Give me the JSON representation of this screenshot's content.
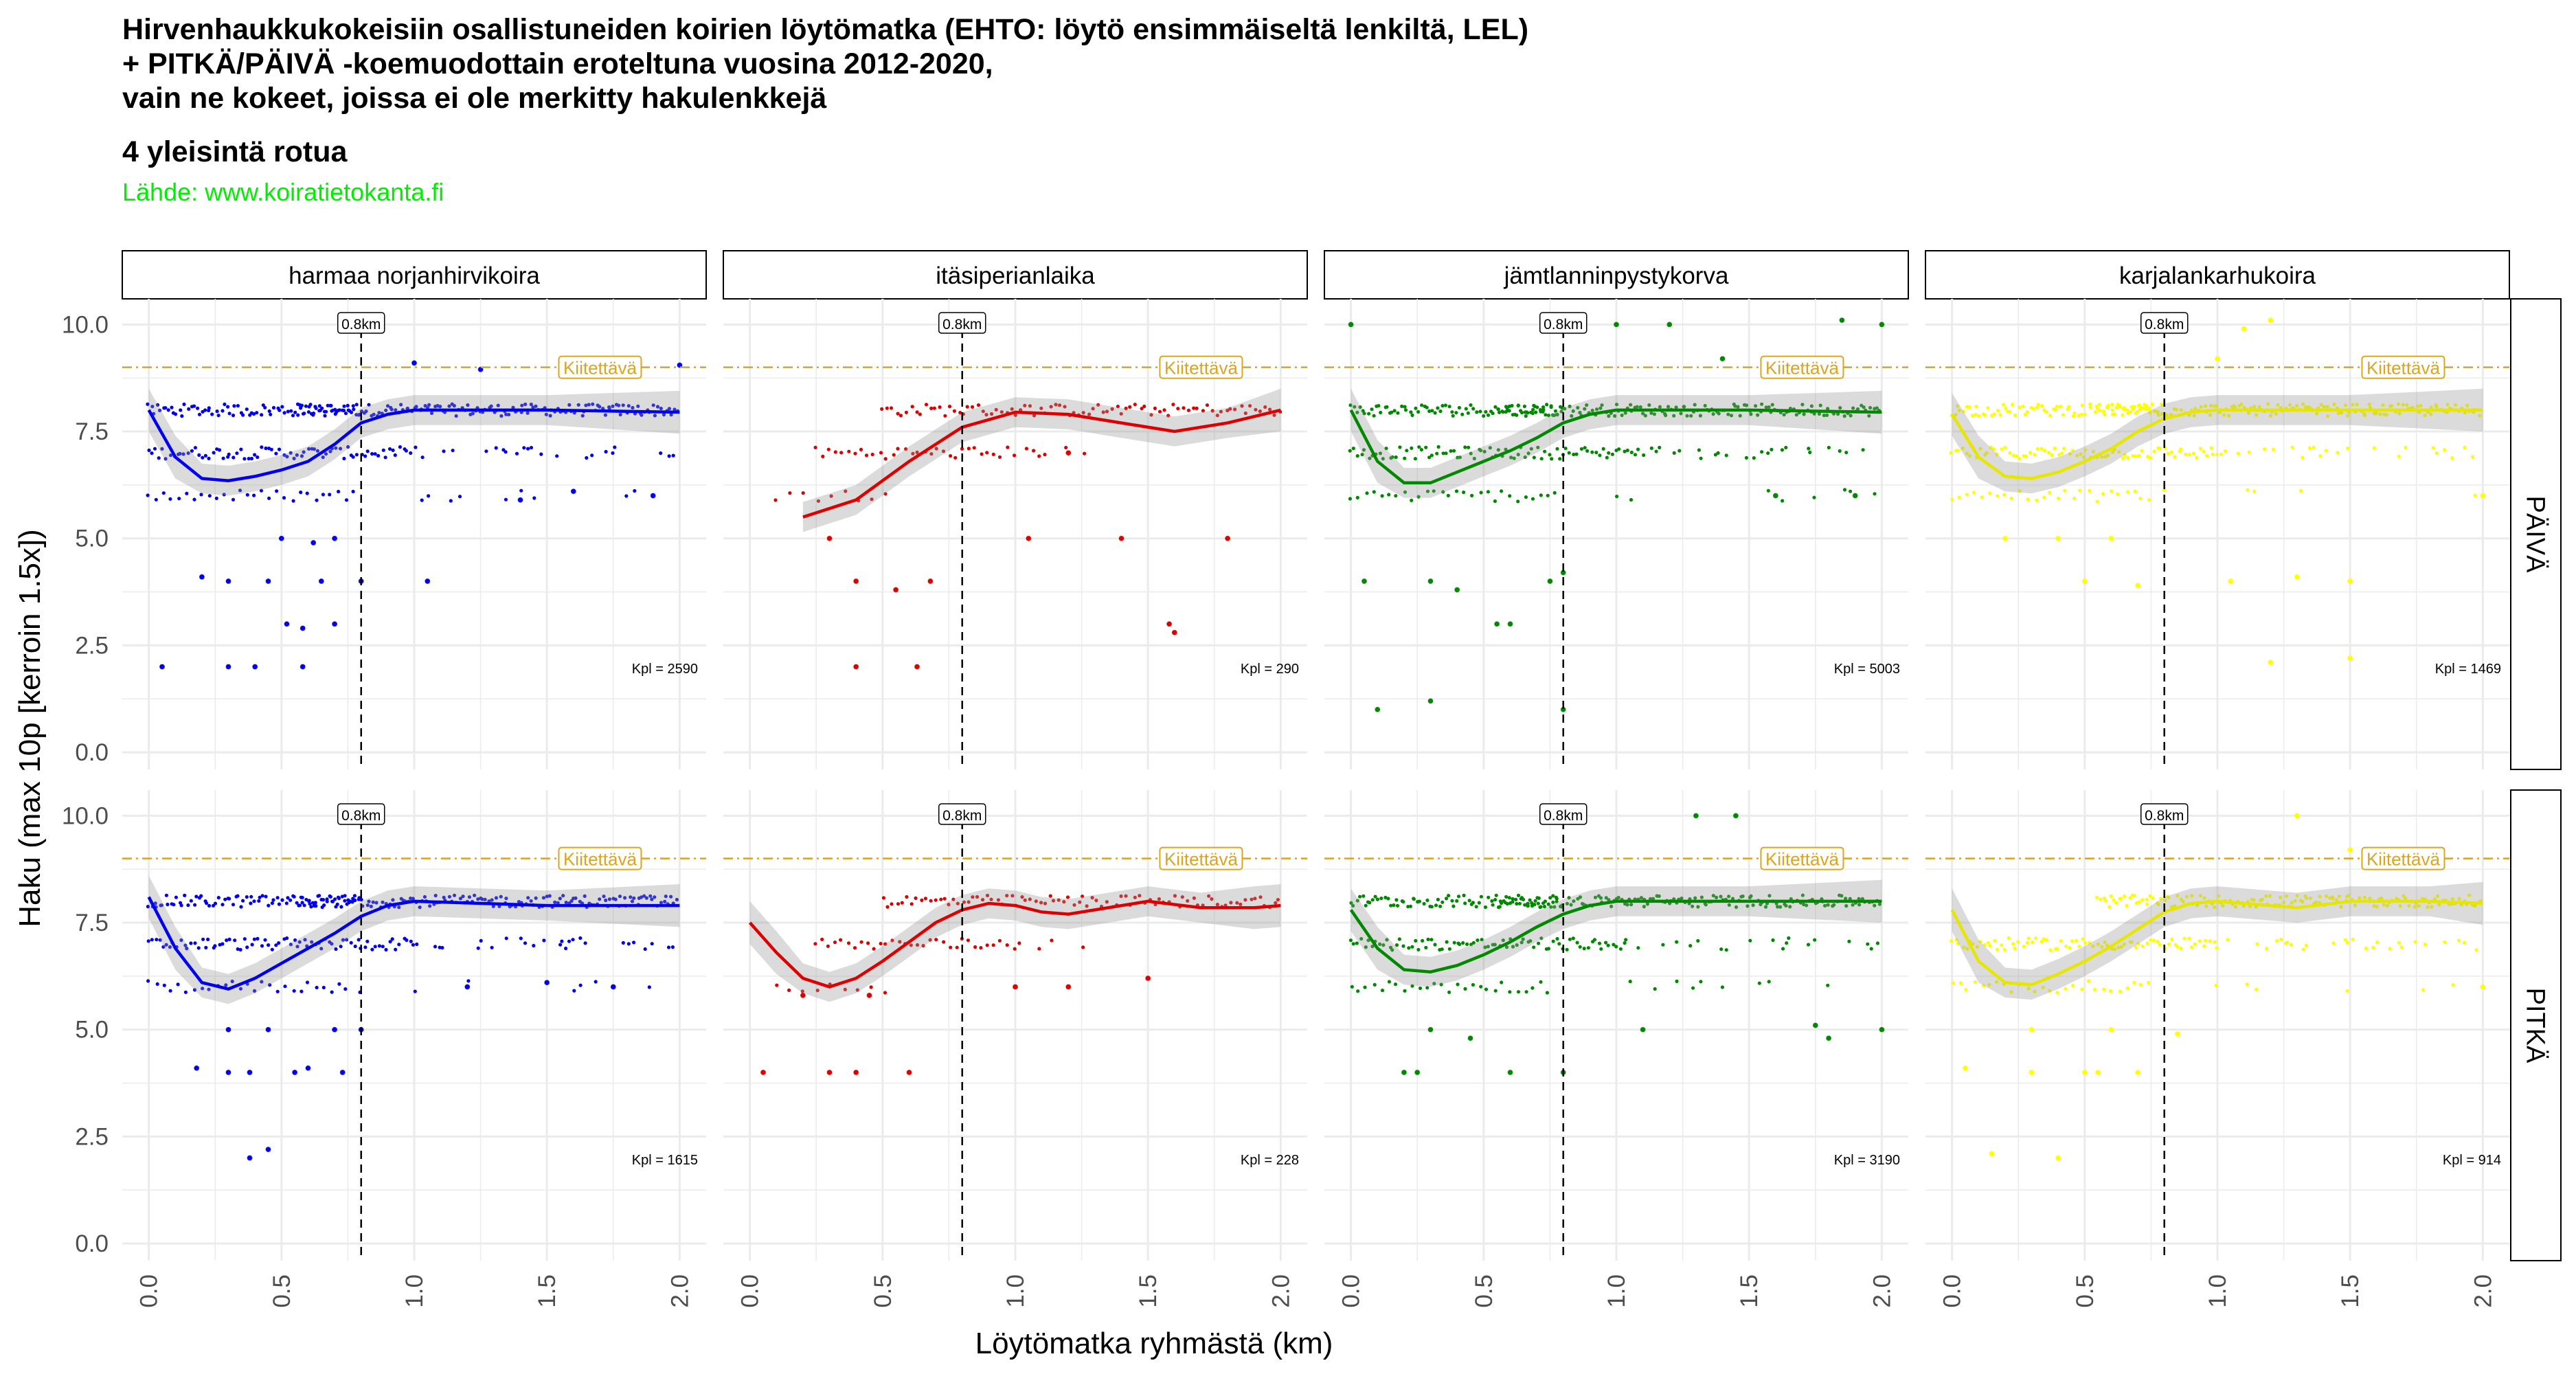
{
  "title": {
    "line1": "Hirvenhaukkukokeisiin osallistuneiden koirien löytömatka (EHTO: löytö ensimmäiseltä lenkiltä, LEL)",
    "line2": "+ PITKÄ/PÄIVÄ -koemuodottain eroteltuna vuosina 2012-2020,",
    "line3": "vain ne kokeet, joissa ei ole merkitty hakulenkkejä",
    "subtitle": "4 yleisintä rotua",
    "caption": "Lähde: www.koiratietokanta.fi"
  },
  "chart_data": {
    "type": "scatter",
    "xlabel": "Löytömatka ryhmästä (km)",
    "ylabel": "Haku (max 10p [kerroin 1.5x])",
    "xlim": [
      -0.1,
      2.1
    ],
    "ylim": [
      -0.4,
      10.6
    ],
    "x_ticks": [
      "0.0",
      "0.5",
      "1.0",
      "1.5",
      "2.0"
    ],
    "x_tick_values": [
      0,
      0.5,
      1,
      1.5,
      2
    ],
    "y_ticks": [
      "0.0",
      "2.5",
      "5.0",
      "7.5",
      "10.0"
    ],
    "y_tick_values": [
      0,
      2.5,
      5,
      7.5,
      10
    ],
    "grid": true,
    "columns": [
      "harmaa norjanhirvikoira",
      "itäsiperianlaika",
      "jämtlanninpystykorva",
      "karjalankarhukoira"
    ],
    "rows": [
      "PÄIVÄ",
      "PITKÄ"
    ],
    "colors": [
      "#0000ee",
      "#dd0000",
      "#008800",
      "#ffff00"
    ],
    "vline": {
      "x": 0.8,
      "label": "0.8km"
    },
    "hline": {
      "y": 9,
      "label": "Kiitettävä",
      "color": "#daa520"
    },
    "panels": [
      {
        "row": 0,
        "col": 0,
        "n_label": "Kpl = 2590",
        "smooth": [
          [
            0,
            8.0
          ],
          [
            0.1,
            6.9
          ],
          [
            0.2,
            6.4
          ],
          [
            0.3,
            6.35
          ],
          [
            0.4,
            6.45
          ],
          [
            0.5,
            6.6
          ],
          [
            0.6,
            6.8
          ],
          [
            0.7,
            7.2
          ],
          [
            0.8,
            7.7
          ],
          [
            0.9,
            7.9
          ],
          [
            1.0,
            8.0
          ],
          [
            1.5,
            8.0
          ],
          [
            2.0,
            7.95
          ]
        ],
        "bands": [
          [
            0,
            8.0
          ],
          [
            1,
            8.0
          ],
          [
            2,
            7.0
          ],
          [
            3,
            6.0
          ]
        ],
        "sparse": [
          [
            0.05,
            2.0
          ],
          [
            0.3,
            2.0
          ],
          [
            0.4,
            2.0
          ],
          [
            0.58,
            2.0
          ],
          [
            0.2,
            4.1
          ],
          [
            0.3,
            4.0
          ],
          [
            0.45,
            4.0
          ],
          [
            0.65,
            4.0
          ],
          [
            0.8,
            4.0
          ],
          [
            0.52,
            3.0
          ],
          [
            0.58,
            2.9
          ],
          [
            0.7,
            3.0
          ],
          [
            0.5,
            5.0
          ],
          [
            0.62,
            4.9
          ],
          [
            0.7,
            5.0
          ],
          [
            1.05,
            4.0
          ],
          [
            1.0,
            9.1
          ],
          [
            1.25,
            8.95
          ],
          [
            2.0,
            9.05
          ],
          [
            1.6,
            6.1
          ],
          [
            1.9,
            6.0
          ],
          [
            1.4,
            5.9
          ]
        ]
      },
      {
        "row": 0,
        "col": 1,
        "n_label": "Kpl = 290",
        "smooth": [
          [
            0.2,
            5.5
          ],
          [
            0.4,
            5.9
          ],
          [
            0.6,
            6.8
          ],
          [
            0.8,
            7.6
          ],
          [
            1.0,
            7.95
          ],
          [
            1.2,
            7.9
          ],
          [
            1.4,
            7.7
          ],
          [
            1.6,
            7.5
          ],
          [
            1.8,
            7.7
          ],
          [
            2.0,
            8.0
          ]
        ],
        "bands": [
          [
            0,
            8.0
          ],
          [
            2,
            7.0
          ],
          [
            3,
            6.0
          ]
        ],
        "sparse": [
          [
            0.4,
            2.0
          ],
          [
            0.63,
            2.0
          ],
          [
            0.4,
            4.0
          ],
          [
            0.55,
            3.8
          ],
          [
            0.68,
            4.0
          ],
          [
            1.58,
            3.0
          ],
          [
            1.6,
            2.8
          ],
          [
            1.2,
            7.0
          ],
          [
            1.4,
            5.0
          ],
          [
            1.8,
            5.0
          ],
          [
            0.3,
            5.0
          ],
          [
            1.05,
            5.0
          ]
        ]
      },
      {
        "row": 0,
        "col": 2,
        "n_label": "Kpl = 5003",
        "smooth": [
          [
            0,
            8.0
          ],
          [
            0.1,
            6.8
          ],
          [
            0.2,
            6.3
          ],
          [
            0.3,
            6.3
          ],
          [
            0.4,
            6.55
          ],
          [
            0.5,
            6.8
          ],
          [
            0.6,
            7.05
          ],
          [
            0.7,
            7.35
          ],
          [
            0.8,
            7.7
          ],
          [
            0.9,
            7.9
          ],
          [
            1.0,
            8.0
          ],
          [
            1.5,
            8.0
          ],
          [
            2.0,
            7.95
          ]
        ],
        "bands": [
          [
            0,
            8.0
          ],
          [
            1,
            8.0
          ],
          [
            2,
            7.0
          ],
          [
            3,
            6.0
          ]
        ],
        "sparse": [
          [
            0.1,
            1.0
          ],
          [
            0.3,
            1.2
          ],
          [
            0.8,
            1.0
          ],
          [
            0.55,
            3.0
          ],
          [
            0.6,
            3.0
          ],
          [
            0.05,
            4.0
          ],
          [
            0.3,
            4.0
          ],
          [
            0.4,
            3.8
          ],
          [
            0.75,
            4.0
          ],
          [
            0.8,
            4.2
          ],
          [
            0.0,
            10.0
          ],
          [
            1.0,
            10.0
          ],
          [
            1.2,
            10.0
          ],
          [
            1.85,
            10.1
          ],
          [
            2.0,
            10.0
          ],
          [
            1.4,
            9.2
          ],
          [
            1.6,
            6.0
          ],
          [
            1.9,
            6.0
          ]
        ]
      },
      {
        "row": 0,
        "col": 3,
        "n_label": "Kpl = 1469",
        "smooth": [
          [
            0,
            7.9
          ],
          [
            0.1,
            6.9
          ],
          [
            0.2,
            6.45
          ],
          [
            0.3,
            6.4
          ],
          [
            0.4,
            6.55
          ],
          [
            0.5,
            6.8
          ],
          [
            0.6,
            7.1
          ],
          [
            0.7,
            7.5
          ],
          [
            0.8,
            7.8
          ],
          [
            0.9,
            7.95
          ],
          [
            1.0,
            8.0
          ],
          [
            1.5,
            8.0
          ],
          [
            2.0,
            8.0
          ]
        ],
        "bands": [
          [
            0,
            8.0
          ],
          [
            1,
            8.0
          ],
          [
            2,
            7.0
          ],
          [
            3,
            6.0
          ]
        ],
        "sparse": [
          [
            0.5,
            4.0
          ],
          [
            0.7,
            3.9
          ],
          [
            1.05,
            4.0
          ],
          [
            1.3,
            4.1
          ],
          [
            1.5,
            4.0
          ],
          [
            0.2,
            5.0
          ],
          [
            0.4,
            5.0
          ],
          [
            0.6,
            5.0
          ],
          [
            1.2,
            2.1
          ],
          [
            1.5,
            2.2
          ],
          [
            1.0,
            9.2
          ],
          [
            1.2,
            10.1
          ],
          [
            1.1,
            9.9
          ],
          [
            2.0,
            6.0
          ]
        ]
      },
      {
        "row": 1,
        "col": 0,
        "n_label": "Kpl = 1615",
        "smooth": [
          [
            0,
            8.1
          ],
          [
            0.1,
            6.9
          ],
          [
            0.2,
            6.1
          ],
          [
            0.3,
            5.95
          ],
          [
            0.4,
            6.2
          ],
          [
            0.5,
            6.55
          ],
          [
            0.6,
            6.9
          ],
          [
            0.7,
            7.25
          ],
          [
            0.8,
            7.65
          ],
          [
            0.9,
            7.9
          ],
          [
            1.0,
            8.0
          ],
          [
            1.5,
            7.9
          ],
          [
            2.0,
            7.9
          ]
        ],
        "bands": [
          [
            0,
            8.0
          ],
          [
            1,
            8.0
          ],
          [
            2,
            7.0
          ],
          [
            3,
            6.0
          ]
        ],
        "sparse": [
          [
            0.38,
            2.0
          ],
          [
            0.45,
            2.2
          ],
          [
            0.18,
            4.1
          ],
          [
            0.3,
            4.0
          ],
          [
            0.38,
            4.0
          ],
          [
            0.55,
            4.0
          ],
          [
            0.6,
            4.1
          ],
          [
            0.73,
            4.0
          ],
          [
            0.8,
            5.0
          ],
          [
            0.3,
            5.0
          ],
          [
            0.45,
            5.0
          ],
          [
            0.7,
            5.0
          ],
          [
            1.2,
            6.0
          ],
          [
            1.5,
            6.1
          ],
          [
            1.75,
            6.0
          ]
        ]
      },
      {
        "row": 1,
        "col": 1,
        "n_label": "Kpl = 228",
        "smooth": [
          [
            0,
            7.5
          ],
          [
            0.1,
            6.8
          ],
          [
            0.2,
            6.2
          ],
          [
            0.3,
            6.0
          ],
          [
            0.4,
            6.2
          ],
          [
            0.5,
            6.6
          ],
          [
            0.6,
            7.05
          ],
          [
            0.7,
            7.5
          ],
          [
            0.8,
            7.8
          ],
          [
            0.9,
            7.95
          ],
          [
            1.0,
            7.9
          ],
          [
            1.1,
            7.75
          ],
          [
            1.2,
            7.7
          ],
          [
            1.3,
            7.8
          ],
          [
            1.5,
            8.0
          ],
          [
            1.7,
            7.85
          ],
          [
            1.9,
            7.85
          ],
          [
            2.0,
            7.9
          ]
        ],
        "bands": [
          [
            0,
            8.0
          ],
          [
            2,
            7.0
          ],
          [
            3,
            6.0
          ]
        ],
        "sparse": [
          [
            0.05,
            4.0
          ],
          [
            0.3,
            4.0
          ],
          [
            0.4,
            4.0
          ],
          [
            0.6,
            4.0
          ],
          [
            0.2,
            5.8
          ],
          [
            0.45,
            5.8
          ],
          [
            1.0,
            6.0
          ],
          [
            1.2,
            6.0
          ],
          [
            1.5,
            6.2
          ]
        ]
      },
      {
        "row": 1,
        "col": 2,
        "n_label": "Kpl = 3190",
        "smooth": [
          [
            0,
            7.8
          ],
          [
            0.1,
            6.9
          ],
          [
            0.2,
            6.4
          ],
          [
            0.3,
            6.35
          ],
          [
            0.4,
            6.5
          ],
          [
            0.5,
            6.75
          ],
          [
            0.6,
            7.05
          ],
          [
            0.7,
            7.4
          ],
          [
            0.8,
            7.7
          ],
          [
            0.9,
            7.9
          ],
          [
            1.0,
            8.0
          ],
          [
            1.5,
            8.0
          ],
          [
            2.0,
            8.0
          ]
        ],
        "bands": [
          [
            0,
            8.0
          ],
          [
            1,
            8.0
          ],
          [
            2,
            7.0
          ],
          [
            3,
            6.0
          ]
        ],
        "sparse": [
          [
            0.2,
            4.0
          ],
          [
            0.25,
            4.0
          ],
          [
            0.6,
            4.0
          ],
          [
            0.8,
            4.0
          ],
          [
            0.3,
            5.0
          ],
          [
            0.45,
            4.8
          ],
          [
            1.1,
            5.0
          ],
          [
            1.75,
            5.1
          ],
          [
            1.8,
            4.8
          ],
          [
            2.0,
            5.0
          ],
          [
            1.3,
            10.0
          ],
          [
            1.45,
            10.0
          ]
        ]
      },
      {
        "row": 1,
        "col": 3,
        "n_label": "Kpl = 914",
        "smooth": [
          [
            0,
            7.8
          ],
          [
            0.1,
            6.6
          ],
          [
            0.2,
            6.1
          ],
          [
            0.3,
            6.05
          ],
          [
            0.4,
            6.3
          ],
          [
            0.5,
            6.6
          ],
          [
            0.6,
            6.95
          ],
          [
            0.7,
            7.35
          ],
          [
            0.8,
            7.75
          ],
          [
            0.9,
            7.95
          ],
          [
            1.0,
            8.0
          ],
          [
            1.3,
            7.85
          ],
          [
            1.5,
            8.0
          ],
          [
            1.8,
            8.0
          ],
          [
            2.0,
            7.95
          ]
        ],
        "bands": [
          [
            0,
            8.0
          ],
          [
            2,
            7.0
          ],
          [
            3,
            6.0
          ]
        ],
        "sparse": [
          [
            0.15,
            2.1
          ],
          [
            0.4,
            2.0
          ],
          [
            0.05,
            4.1
          ],
          [
            0.3,
            4.0
          ],
          [
            0.5,
            4.0
          ],
          [
            0.55,
            4.0
          ],
          [
            0.7,
            4.0
          ],
          [
            0.3,
            5.0
          ],
          [
            0.6,
            5.0
          ],
          [
            0.85,
            4.9
          ],
          [
            1.3,
            10.0
          ],
          [
            1.5,
            9.2
          ],
          [
            2.0,
            6.0
          ]
        ]
      }
    ]
  }
}
